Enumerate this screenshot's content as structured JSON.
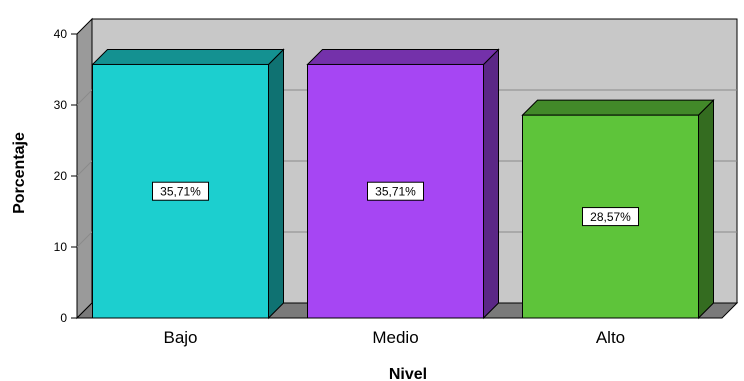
{
  "chart_data": {
    "type": "bar",
    "style": "3d",
    "categories": [
      "Bajo",
      "Medio",
      "Alto"
    ],
    "values": [
      35.71,
      35.71,
      28.57
    ],
    "data_labels": [
      "35,71%",
      "35,71%",
      "28,57%"
    ],
    "colors": [
      "#1ccfcf",
      "#a646f3",
      "#5ec43a"
    ],
    "title": "",
    "xlabel": "Nivel",
    "ylabel": "Porcentaje",
    "ylim": [
      0,
      40
    ],
    "yticks": [
      "0",
      "10",
      "20",
      "30",
      "40"
    ],
    "grid": true,
    "legend": "none"
  }
}
